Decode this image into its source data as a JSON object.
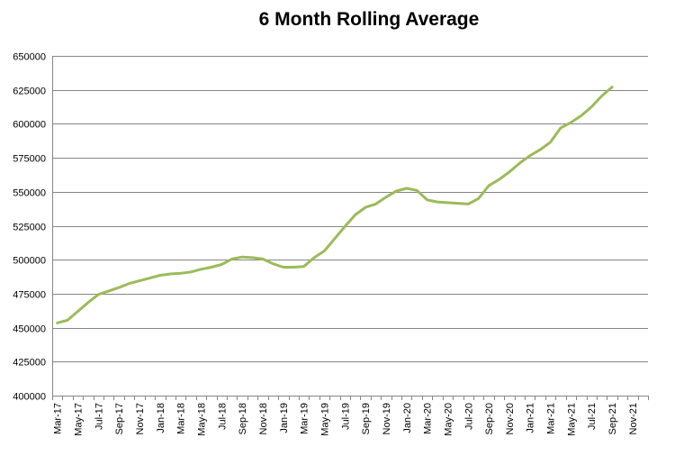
{
  "chart_data": {
    "type": "line",
    "title": "6 Month Rolling Average",
    "xlabel": "",
    "ylabel": "",
    "ylim": [
      400000,
      650000
    ],
    "yticks": [
      400000,
      425000,
      450000,
      475000,
      500000,
      525000,
      550000,
      575000,
      600000,
      625000,
      650000
    ],
    "grid": "horizontal",
    "legend": "none",
    "line_color": "#9BBB59",
    "x_tick_labels": [
      "Mar-17",
      "May-17",
      "Jul-17",
      "Sep-17",
      "Nov-17",
      "Jan-18",
      "Mar-18",
      "May-18",
      "Jul-18",
      "Sep-18",
      "Nov-18",
      "Jan-19",
      "Mar-19",
      "May-19",
      "Jul-19",
      "Sep-19",
      "Nov-19",
      "Jan-20",
      "Mar-20",
      "May-20",
      "Jul-20",
      "Sep-20",
      "Nov-20",
      "Jan-21",
      "Mar-21",
      "May-21",
      "Jul-21",
      "Sep-21",
      "Nov-21"
    ],
    "x": [
      "Mar-17",
      "Apr-17",
      "May-17",
      "Jun-17",
      "Jul-17",
      "Aug-17",
      "Sep-17",
      "Oct-17",
      "Nov-17",
      "Dec-17",
      "Jan-18",
      "Feb-18",
      "Mar-18",
      "Apr-18",
      "May-18",
      "Jun-18",
      "Jul-18",
      "Aug-18",
      "Sep-18",
      "Oct-18",
      "Nov-18",
      "Dec-18",
      "Jan-19",
      "Feb-19",
      "Mar-19",
      "Apr-19",
      "May-19",
      "Jun-19",
      "Jul-19",
      "Aug-19",
      "Sep-19",
      "Oct-19",
      "Nov-19",
      "Dec-19",
      "Jan-20",
      "Feb-20",
      "Mar-20",
      "Apr-20",
      "May-20",
      "Jun-20",
      "Jul-20",
      "Aug-20",
      "Sep-20",
      "Oct-20",
      "Nov-20",
      "Dec-20",
      "Jan-21",
      "Feb-21",
      "Mar-21",
      "Apr-21",
      "May-21",
      "Jun-21",
      "Jul-21",
      "Aug-21",
      "Sep-21"
    ],
    "series": [
      {
        "values": [
          453500,
          455500,
          462000,
          468500,
          474500,
          477000,
          479500,
          482500,
          484500,
          486500,
          488500,
          489500,
          490000,
          491000,
          493000,
          494500,
          496500,
          500500,
          502000,
          501500,
          500500,
          497000,
          494500,
          494500,
          495000,
          501500,
          506500,
          515500,
          524500,
          533000,
          538500,
          541000,
          546000,
          550500,
          552500,
          551000,
          544000,
          542500,
          542000,
          541500,
          541000,
          545000,
          554500,
          559000,
          564500,
          571000,
          576500,
          581000,
          586500,
          597000,
          601000,
          606000,
          612500,
          620500,
          627000
        ]
      }
    ]
  }
}
